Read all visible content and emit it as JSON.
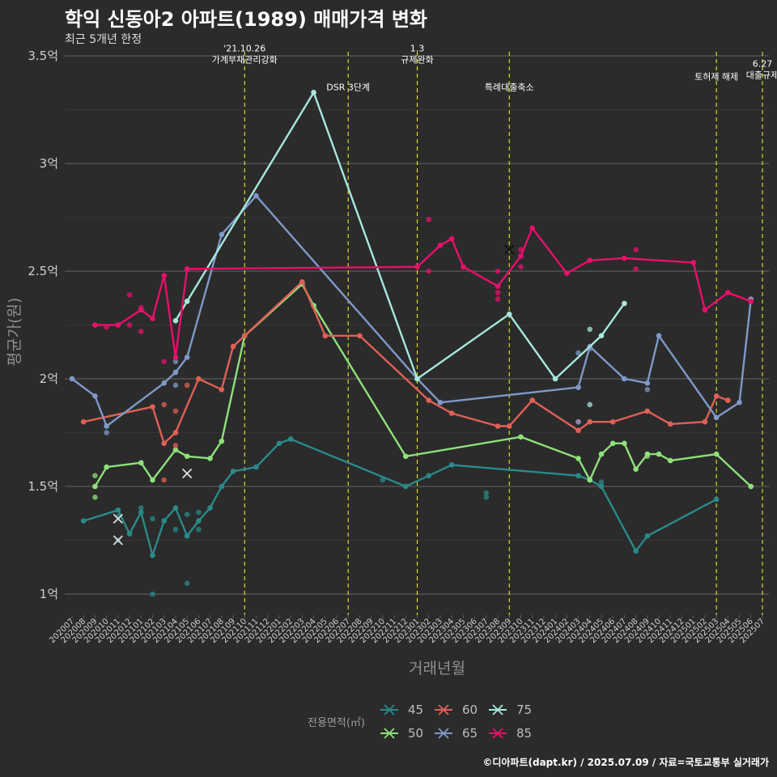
{
  "title": "학익 신동아2 아파트(1989) 매매가격 변화",
  "subtitle": "최근 5개년 한정",
  "caption": "©디아파트(dapt.kr) / 2025.07.09 / 자료=국토교통부 실거래가",
  "chart_data": {
    "type": "line",
    "title": "학익 신동아2 아파트(1989) 매매가격 변화",
    "subtitle": "최근 5개년 한정",
    "xlabel": "거래년월",
    "ylabel": "평균가(원)",
    "ylim": [
      0.88,
      3.5
    ],
    "yticks": [
      {
        "v": 1,
        "label": "1억"
      },
      {
        "v": 1.5,
        "label": "1.5억"
      },
      {
        "v": 2,
        "label": "2억"
      },
      {
        "v": 2.5,
        "label": "2.5억"
      },
      {
        "v": 3,
        "label": "3억"
      },
      {
        "v": 3.5,
        "label": "3.5억"
      }
    ],
    "x_months": [
      "202007",
      "202008",
      "202009",
      "202010",
      "202011",
      "202012",
      "202101",
      "202102",
      "202103",
      "202104",
      "202105",
      "202106",
      "202107",
      "202108",
      "202109",
      "202110",
      "202111",
      "202112",
      "202201",
      "202202",
      "202203",
      "202204",
      "202205",
      "202206",
      "202207",
      "202208",
      "202209",
      "202210",
      "202211",
      "202212",
      "202301",
      "202302",
      "202303",
      "202304",
      "202305",
      "202306",
      "202307",
      "202308",
      "202309",
      "202310",
      "202311",
      "202312",
      "202401",
      "202402",
      "202403",
      "202404",
      "202405",
      "202406",
      "202407",
      "202408",
      "202409",
      "202410",
      "202411",
      "202412",
      "202501",
      "202502",
      "202503",
      "202504",
      "202505",
      "202506",
      "202507"
    ],
    "grid": true,
    "legend": {
      "title": "전용면적(㎡)",
      "placement": "bottom"
    },
    "events": [
      {
        "month": "202110",
        "lines": [
          "'21.10.26",
          "가계부채관리강화"
        ],
        "y": 3.52
      },
      {
        "month": "202207",
        "lines": [
          "DSR 3단계"
        ],
        "y": 3.34
      },
      {
        "month": "202301",
        "lines": [
          "1.3",
          "규제완화"
        ],
        "y": 3.52
      },
      {
        "month": "202309",
        "lines": [
          "특례대출축소"
        ],
        "y": 3.34
      },
      {
        "month": "202503",
        "lines": [
          "토허제 해제"
        ],
        "y": 3.39
      },
      {
        "month": "202507",
        "lines": [
          "6.27",
          "대출규제"
        ],
        "y": 3.45
      }
    ],
    "series": [
      {
        "name": "45",
        "color": "#2a8a8a",
        "line": [
          [
            "202008",
            1.34
          ],
          [
            "202011",
            1.39
          ],
          [
            "202012",
            1.28
          ],
          [
            "202101",
            1.38
          ],
          [
            "202102",
            1.18
          ],
          [
            "202103",
            1.34
          ],
          [
            "202104",
            1.4
          ],
          [
            "202105",
            1.27
          ],
          [
            "202106",
            1.34
          ],
          [
            "202107",
            1.4
          ],
          [
            "202108",
            1.5
          ],
          [
            "202109",
            1.57
          ],
          [
            "202111",
            1.59
          ],
          [
            "202201",
            1.7
          ],
          [
            "202202",
            1.72
          ],
          [
            "202212",
            1.5
          ],
          [
            "202302",
            1.55
          ],
          [
            "202304",
            1.6
          ],
          [
            "202403",
            1.55
          ],
          [
            "202404",
            1.53
          ],
          [
            "202405",
            1.5
          ],
          [
            "202408",
            1.2
          ],
          [
            "202409",
            1.27
          ],
          [
            "202503",
            1.44
          ]
        ],
        "points": [
          [
            "202011",
            1.36
          ],
          [
            "202011",
            1.25
          ],
          [
            "202101",
            1.4
          ],
          [
            "202102",
            1.0
          ],
          [
            "202102",
            1.35
          ],
          [
            "202104",
            1.3
          ],
          [
            "202105",
            1.05
          ],
          [
            "202105",
            1.37
          ],
          [
            "202106",
            1.38
          ],
          [
            "202106",
            1.3
          ],
          [
            "202210",
            1.53
          ],
          [
            "202307",
            1.47
          ],
          [
            "202307",
            1.45
          ],
          [
            "202405",
            1.52
          ]
        ],
        "crosses": [
          [
            "202011",
            1.35
          ],
          [
            "202011",
            1.25
          ]
        ]
      },
      {
        "name": "50",
        "color": "#8fe07a",
        "line": [
          [
            "202009",
            1.5
          ],
          [
            "202010",
            1.59
          ],
          [
            "202101",
            1.61
          ],
          [
            "202102",
            1.53
          ],
          [
            "202104",
            1.67
          ],
          [
            "202105",
            1.64
          ],
          [
            "202107",
            1.63
          ],
          [
            "202108",
            1.71
          ],
          [
            "202110",
            2.2
          ],
          [
            "202203",
            2.44
          ],
          [
            "202204",
            2.34
          ],
          [
            "202212",
            1.64
          ],
          [
            "202310",
            1.73
          ],
          [
            "202403",
            1.63
          ],
          [
            "202404",
            1.53
          ],
          [
            "202405",
            1.65
          ],
          [
            "202406",
            1.7
          ],
          [
            "202407",
            1.7
          ],
          [
            "202408",
            1.58
          ],
          [
            "202409",
            1.65
          ],
          [
            "202410",
            1.65
          ],
          [
            "202411",
            1.62
          ],
          [
            "202503",
            1.65
          ],
          [
            "202506",
            1.5
          ]
        ],
        "points": [
          [
            "202009",
            1.55
          ],
          [
            "202009",
            1.45
          ],
          [
            "202409",
            1.64
          ]
        ],
        "crosses": [
          [
            "202105",
            1.56
          ]
        ]
      },
      {
        "name": "60",
        "color": "#e06056",
        "line": [
          [
            "202008",
            1.8
          ],
          [
            "202102",
            1.87
          ],
          [
            "202103",
            1.7
          ],
          [
            "202104",
            1.75
          ],
          [
            "202106",
            2.0
          ],
          [
            "202108",
            1.95
          ],
          [
            "202109",
            2.15
          ],
          [
            "202110",
            2.2
          ],
          [
            "202203",
            2.45
          ],
          [
            "202205",
            2.2
          ],
          [
            "202208",
            2.2
          ],
          [
            "202302",
            1.9
          ],
          [
            "202304",
            1.84
          ],
          [
            "202308",
            1.78
          ],
          [
            "202309",
            1.78
          ],
          [
            "202311",
            1.9
          ],
          [
            "202403",
            1.76
          ],
          [
            "202404",
            1.8
          ],
          [
            "202406",
            1.8
          ],
          [
            "202409",
            1.85
          ],
          [
            "202411",
            1.79
          ],
          [
            "202502",
            1.8
          ],
          [
            "202503",
            1.92
          ],
          [
            "202504",
            1.9
          ]
        ],
        "points": [
          [
            "202103",
            1.88
          ],
          [
            "202103",
            1.53
          ],
          [
            "202104",
            1.85
          ],
          [
            "202104",
            1.69
          ],
          [
            "202105",
            1.97
          ],
          [
            "202403",
            1.8
          ],
          [
            "202504",
            1.9
          ]
        ],
        "crosses": []
      },
      {
        "name": "65",
        "color": "#7f99c9",
        "line": [
          [
            "202007",
            2.0
          ],
          [
            "202009",
            1.92
          ],
          [
            "202010",
            1.78
          ],
          [
            "202103",
            1.98
          ],
          [
            "202104",
            2.03
          ],
          [
            "202105",
            2.1
          ],
          [
            "202108",
            2.67
          ],
          [
            "202111",
            2.85
          ],
          [
            "202301",
            2.0
          ],
          [
            "202303",
            1.89
          ],
          [
            "202403",
            1.96
          ],
          [
            "202404",
            2.15
          ],
          [
            "202407",
            2.0
          ],
          [
            "202409",
            1.98
          ],
          [
            "202410",
            2.2
          ],
          [
            "202503",
            1.82
          ],
          [
            "202505",
            1.89
          ],
          [
            "202506",
            2.37
          ]
        ],
        "points": [
          [
            "202010",
            1.75
          ],
          [
            "202104",
            2.08
          ],
          [
            "202104",
            1.97
          ],
          [
            "202403",
            2.12
          ],
          [
            "202403",
            1.8
          ],
          [
            "202404",
            2.14
          ],
          [
            "202409",
            1.95
          ]
        ],
        "crosses": []
      },
      {
        "name": "75",
        "color": "#a6e8dc",
        "line": [
          [
            "202104",
            2.27
          ],
          [
            "202105",
            2.36
          ],
          [
            "202204",
            3.33
          ],
          [
            "202301",
            2.0
          ],
          [
            "202309",
            2.3
          ],
          [
            "202401",
            2.0
          ],
          [
            "202405",
            2.2
          ],
          [
            "202407",
            2.35
          ]
        ],
        "points": [
          [
            "202404",
            2.23
          ],
          [
            "202404",
            1.88
          ]
        ],
        "crosses": []
      },
      {
        "name": "85",
        "color": "#e8106a",
        "line": [
          [
            "202009",
            2.25
          ],
          [
            "202011",
            2.25
          ],
          [
            "202101",
            2.32
          ],
          [
            "202102",
            2.28
          ],
          [
            "202103",
            2.48
          ],
          [
            "202104",
            2.1
          ],
          [
            "202105",
            2.51
          ],
          [
            "202301",
            2.52
          ],
          [
            "202303",
            2.62
          ],
          [
            "202304",
            2.65
          ],
          [
            "202305",
            2.52
          ],
          [
            "202308",
            2.43
          ],
          [
            "202310",
            2.57
          ],
          [
            "202311",
            2.7
          ],
          [
            "202402",
            2.49
          ],
          [
            "202404",
            2.55
          ],
          [
            "202407",
            2.56
          ],
          [
            "202501",
            2.54
          ],
          [
            "202502",
            2.32
          ],
          [
            "202504",
            2.4
          ],
          [
            "202506",
            2.36
          ]
        ],
        "points": [
          [
            "202010",
            2.24
          ],
          [
            "202012",
            2.39
          ],
          [
            "202012",
            2.25
          ],
          [
            "202101",
            2.33
          ],
          [
            "202101",
            2.22
          ],
          [
            "202103",
            2.08
          ],
          [
            "202302",
            2.74
          ],
          [
            "202302",
            2.5
          ],
          [
            "202308",
            2.5
          ],
          [
            "202308",
            2.4
          ],
          [
            "202308",
            2.37
          ],
          [
            "202310",
            2.6
          ],
          [
            "202310",
            2.52
          ],
          [
            "202408",
            2.6
          ],
          [
            "202408",
            2.51
          ]
        ],
        "crosses": [
          [
            "202309",
            2.6
          ]
        ]
      }
    ]
  }
}
